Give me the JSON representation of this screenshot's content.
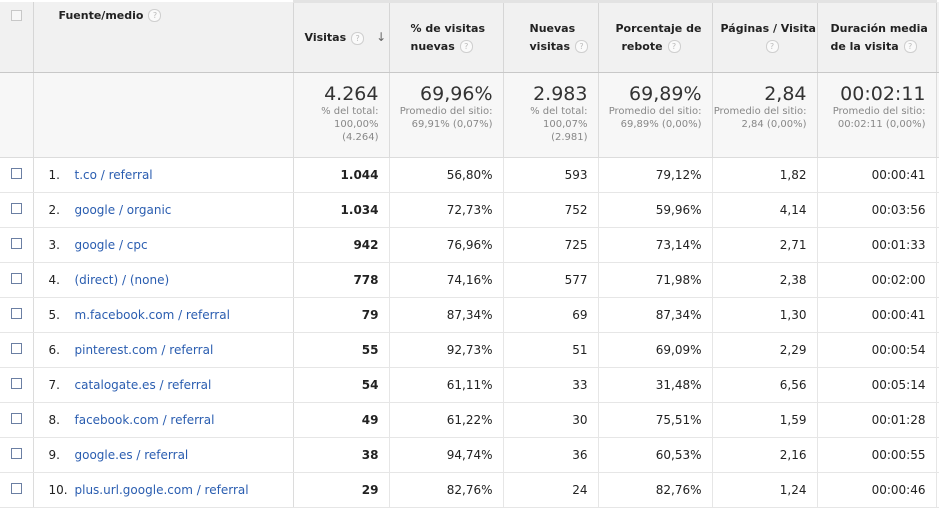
{
  "header": {
    "dimension": "Fuente/medio",
    "help_glyph": "?",
    "sort_glyph": "↓",
    "metrics": [
      {
        "line1": "Visitas",
        "line2": ""
      },
      {
        "line1": "% de visitas",
        "line2": "nuevas"
      },
      {
        "line1": "Nuevas",
        "line2": "visitas"
      },
      {
        "line1": "Porcentaje de",
        "line2": "rebote"
      },
      {
        "line1": "Páginas / Visita",
        "line2": ""
      },
      {
        "line1": "Duración media",
        "line2": "de la visita"
      }
    ]
  },
  "totals": [
    {
      "value": "4.264",
      "l1": "% del total:",
      "l2": "100,00%",
      "l3": "(4.264)"
    },
    {
      "value": "69,96%",
      "l1": "Promedio del sitio:",
      "l2": "69,91% (0,07%)",
      "l3": ""
    },
    {
      "value": "2.983",
      "l1": "% del total:",
      "l2": "100,07%",
      "l3": "(2.981)"
    },
    {
      "value": "69,89%",
      "l1": "Promedio del sitio:",
      "l2": "69,89% (0,00%)",
      "l3": ""
    },
    {
      "value": "2,84",
      "l1": "Promedio del sitio:",
      "l2": "2,84 (0,00%)",
      "l3": ""
    },
    {
      "value": "00:02:11",
      "l1": "Promedio del sitio:",
      "l2": "00:02:11 (0,00%)",
      "l3": ""
    }
  ],
  "rows": [
    {
      "n": "1.",
      "source": "t.co / referral",
      "visits": "1.044",
      "new_pct": "56,80%",
      "new_visits": "593",
      "bounce": "79,12%",
      "ppv": "1,82",
      "duration": "00:00:41"
    },
    {
      "n": "2.",
      "source": "google / organic",
      "visits": "1.034",
      "new_pct": "72,73%",
      "new_visits": "752",
      "bounce": "59,96%",
      "ppv": "4,14",
      "duration": "00:03:56"
    },
    {
      "n": "3.",
      "source": "google / cpc",
      "visits": "942",
      "new_pct": "76,96%",
      "new_visits": "725",
      "bounce": "73,14%",
      "ppv": "2,71",
      "duration": "00:01:33"
    },
    {
      "n": "4.",
      "source": "(direct) / (none)",
      "visits": "778",
      "new_pct": "74,16%",
      "new_visits": "577",
      "bounce": "71,98%",
      "ppv": "2,38",
      "duration": "00:02:00"
    },
    {
      "n": "5.",
      "source": "m.facebook.com / referral",
      "visits": "79",
      "new_pct": "87,34%",
      "new_visits": "69",
      "bounce": "87,34%",
      "ppv": "1,30",
      "duration": "00:00:41"
    },
    {
      "n": "6.",
      "source": "pinterest.com / referral",
      "visits": "55",
      "new_pct": "92,73%",
      "new_visits": "51",
      "bounce": "69,09%",
      "ppv": "2,29",
      "duration": "00:00:54"
    },
    {
      "n": "7.",
      "source": "catalogate.es / referral",
      "visits": "54",
      "new_pct": "61,11%",
      "new_visits": "33",
      "bounce": "31,48%",
      "ppv": "6,56",
      "duration": "00:05:14"
    },
    {
      "n": "8.",
      "source": "facebook.com / referral",
      "visits": "49",
      "new_pct": "61,22%",
      "new_visits": "30",
      "bounce": "75,51%",
      "ppv": "1,59",
      "duration": "00:01:28"
    },
    {
      "n": "9.",
      "source": "google.es / referral",
      "visits": "38",
      "new_pct": "94,74%",
      "new_visits": "36",
      "bounce": "60,53%",
      "ppv": "2,16",
      "duration": "00:00:55"
    },
    {
      "n": "10.",
      "source": "plus.url.google.com / referral",
      "visits": "29",
      "new_pct": "82,76%",
      "new_visits": "24",
      "bounce": "82,76%",
      "ppv": "1,24",
      "duration": "00:00:46"
    }
  ]
}
